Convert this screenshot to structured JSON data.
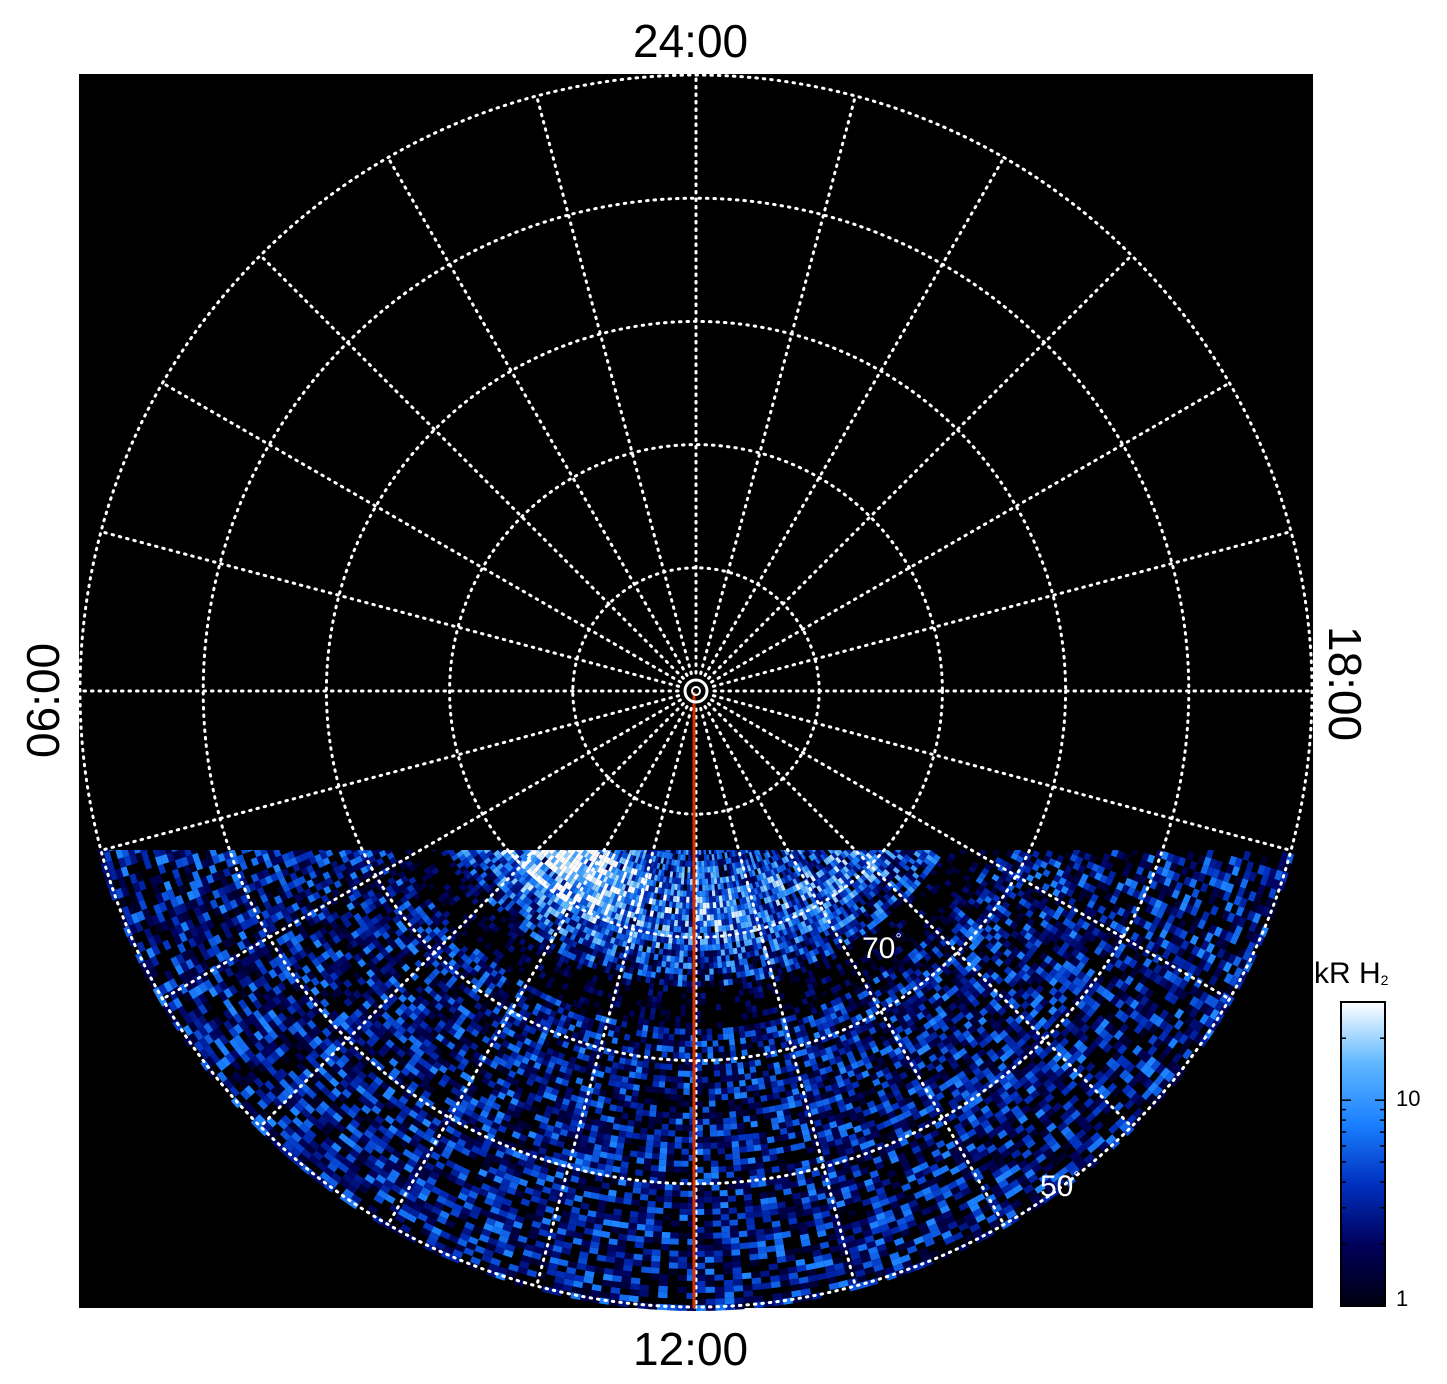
{
  "chart_data": {
    "type": "heatmap",
    "projection": "polar",
    "local_time_labels": {
      "top": "24:00",
      "bottom": "12:00",
      "left": "06:00",
      "right": "18:00"
    },
    "latitude_labels": [
      {
        "text": "70",
        "degree": "°"
      },
      {
        "text": "50",
        "degree": "°"
      }
    ],
    "latitude_rings_deg": [
      80,
      70,
      60,
      50,
      40
    ],
    "meridian_spacing_hours": 1,
    "grid": true,
    "colorbar": {
      "title": "kR H",
      "title_sub": "2",
      "scale": "log",
      "range": [
        1,
        30
      ],
      "ticks": [
        {
          "label": "10",
          "value": 10
        },
        {
          "label": "1",
          "value": 1
        }
      ],
      "colors": [
        "#000010",
        "#00005a",
        "#0030c0",
        "#1a80ff",
        "#60b8ff",
        "#ffffff"
      ]
    },
    "emission_band": {
      "description_values": {
        "peak_latitude_deg": 72,
        "peak_local_time_hours": 9.5,
        "peak_kR": 25
      }
    },
    "reference_line": {
      "local_time": "12:00",
      "color": "#d23200"
    }
  }
}
